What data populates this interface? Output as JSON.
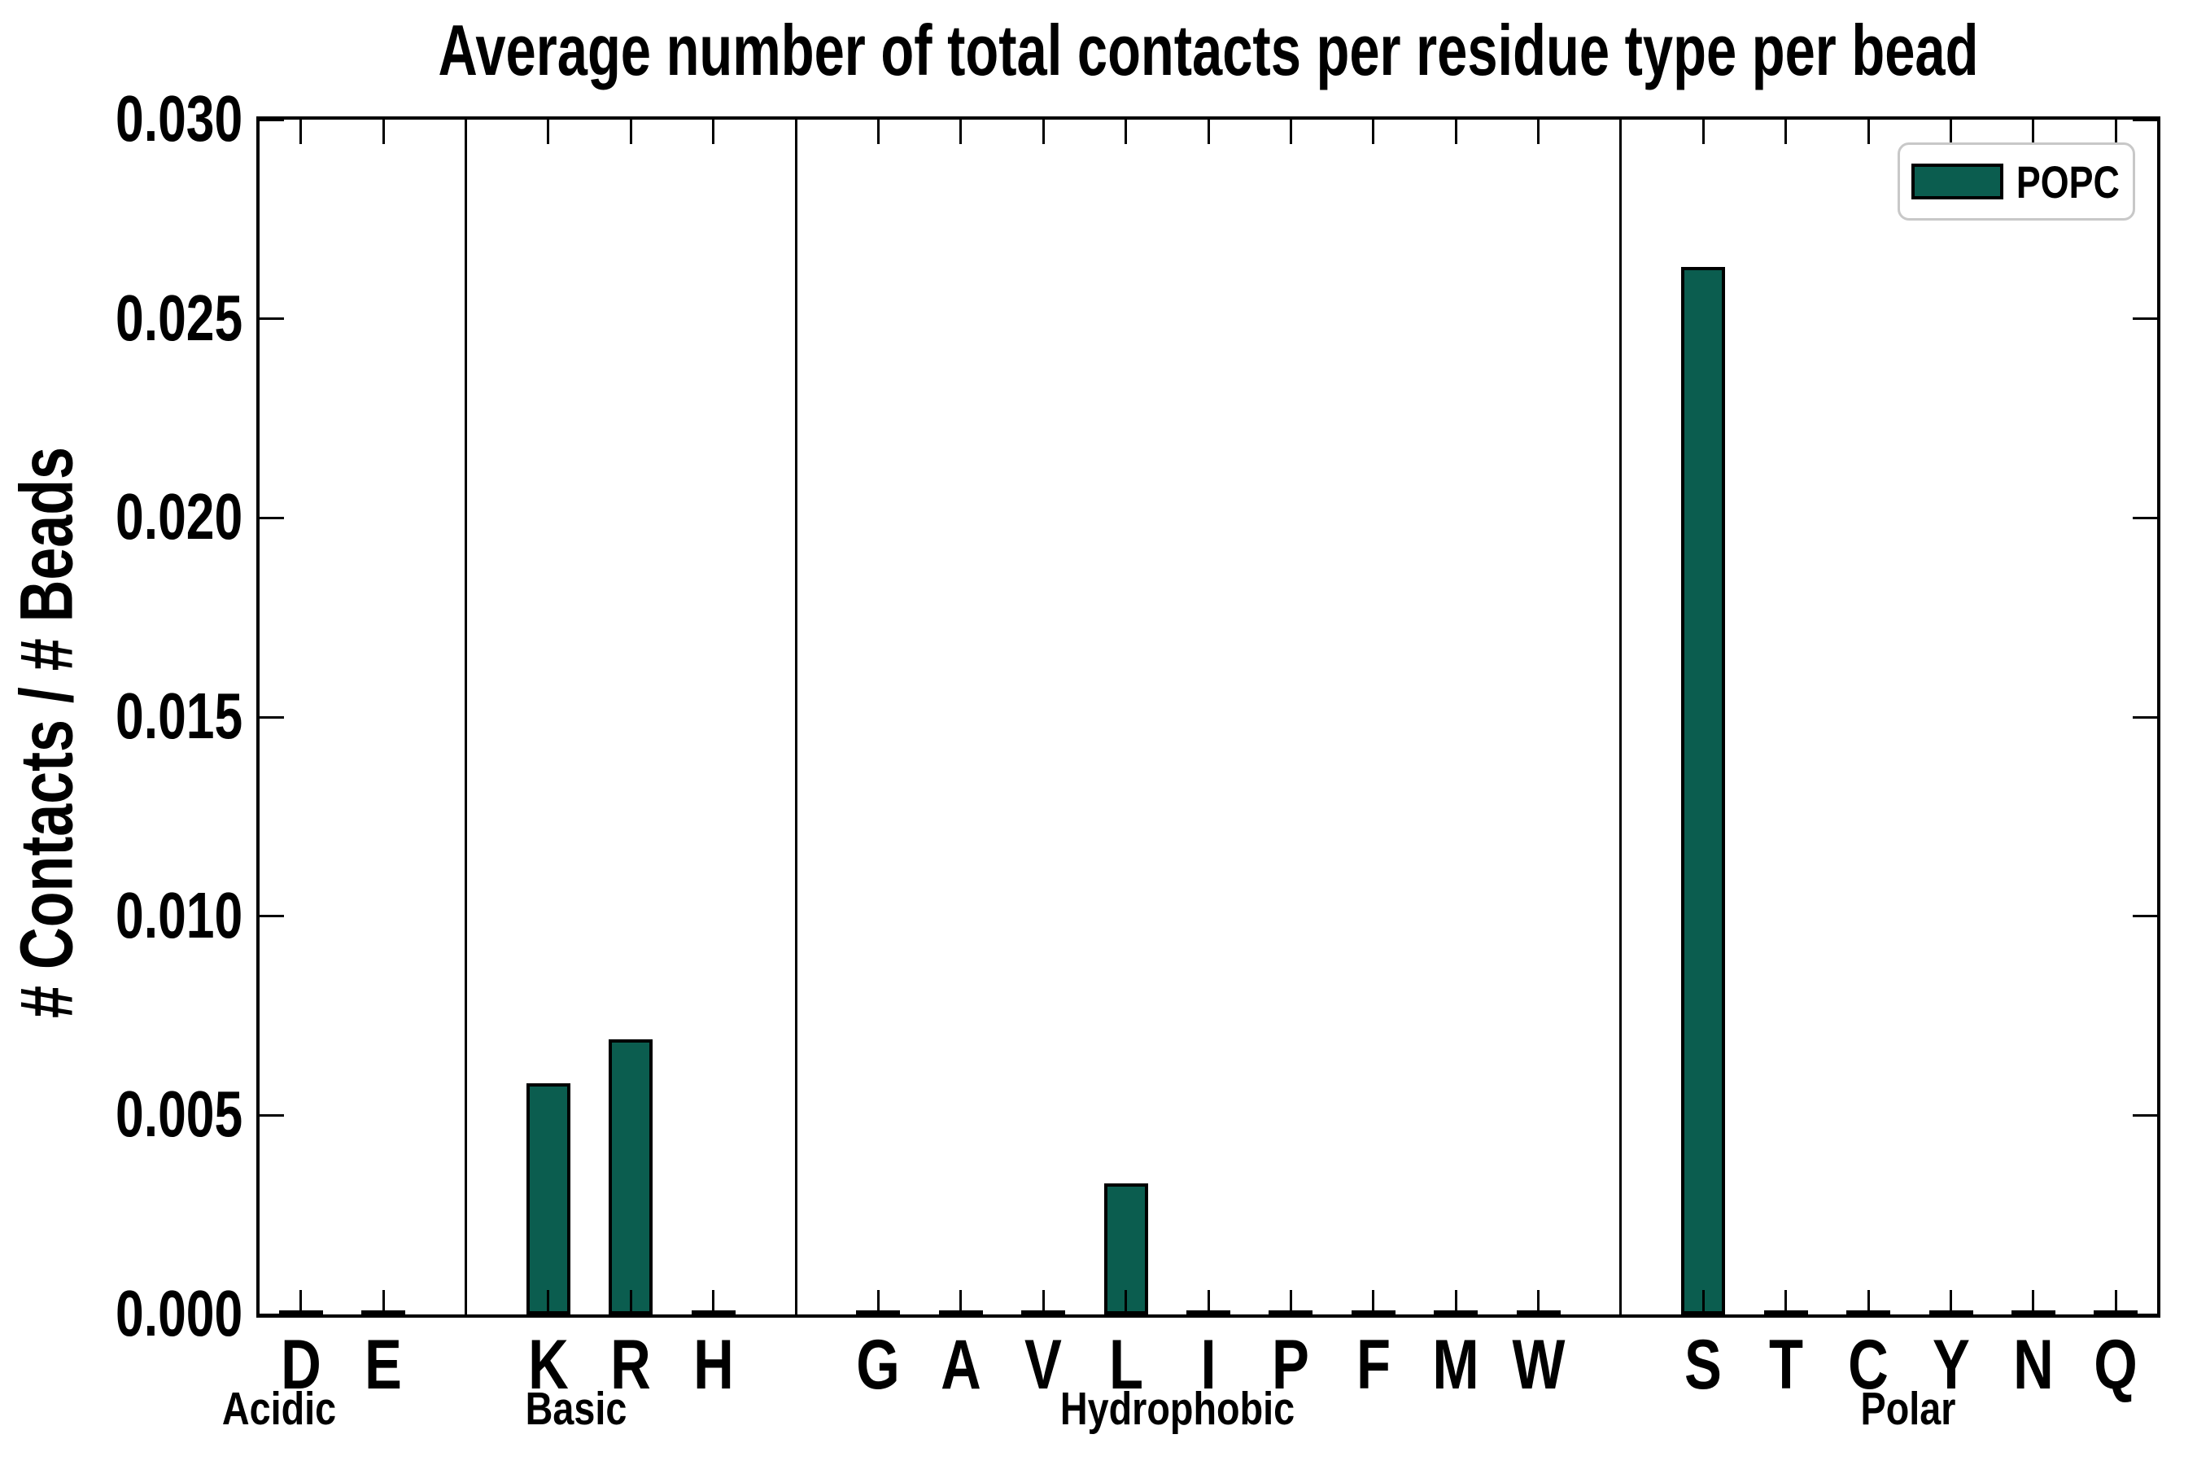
{
  "chart_data": {
    "type": "bar",
    "title": "Average number of total contacts per residue type per bead",
    "ylabel": "# Contacts / # Beads",
    "xlabel": "",
    "ylim": [
      0,
      0.03
    ],
    "ytick_labels": [
      "0.000",
      "0.005",
      "0.010",
      "0.015",
      "0.020",
      "0.025",
      "0.030"
    ],
    "ytick_values": [
      0,
      0.005,
      0.01,
      0.015,
      0.02,
      0.025,
      0.03
    ],
    "categories": [
      "D",
      "E",
      "K",
      "R",
      "H",
      "G",
      "A",
      "V",
      "L",
      "I",
      "P",
      "F",
      "M",
      "W",
      "S",
      "T",
      "C",
      "Y",
      "N",
      "Q"
    ],
    "groups": [
      {
        "label": "Acidic",
        "residues": [
          "D",
          "E"
        ]
      },
      {
        "label": "Basic",
        "residues": [
          "K",
          "R",
          "H"
        ]
      },
      {
        "label": "Hydrophobic",
        "residues": [
          "G",
          "A",
          "V",
          "L",
          "I",
          "P",
          "F",
          "M",
          "W"
        ]
      },
      {
        "label": "Polar",
        "residues": [
          "S",
          "T",
          "C",
          "Y",
          "N",
          "Q"
        ]
      }
    ],
    "series": [
      {
        "name": "POPC",
        "color": "#0b5d4f",
        "edge_color": "#000000",
        "values": [
          0,
          0,
          0.0058,
          0.0069,
          0,
          0,
          0,
          0,
          0.0033,
          0,
          0,
          0,
          0,
          0,
          0.0263,
          0,
          0,
          0,
          0,
          0
        ]
      }
    ],
    "legend_position": "upper right",
    "grid": false,
    "group_dividers": true
  }
}
